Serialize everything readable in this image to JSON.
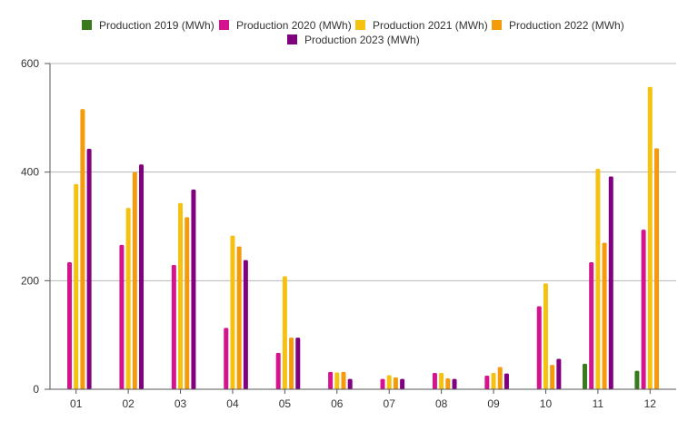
{
  "chart_data": {
    "type": "bar",
    "categories": [
      "01",
      "02",
      "03",
      "04",
      "05",
      "06",
      "07",
      "08",
      "09",
      "10",
      "11",
      "12"
    ],
    "series": [
      {
        "name": "Production 2019 (MWh)",
        "color": "#3a7a1e",
        "values": [
          0,
          0,
          0,
          0,
          0,
          0,
          0,
          0,
          0,
          0,
          47,
          34
        ]
      },
      {
        "name": "Production 2020 (MWh)",
        "color": "#d4148f",
        "values": [
          234,
          266,
          229,
          113,
          67,
          32,
          19,
          30,
          25,
          153,
          234,
          294
        ]
      },
      {
        "name": "Production 2021 (MWh)",
        "color": "#f5c211",
        "values": [
          378,
          334,
          343,
          283,
          208,
          31,
          26,
          30,
          30,
          195,
          406,
          557
        ]
      },
      {
        "name": "Production 2022 (MWh)",
        "color": "#f59a0a",
        "values": [
          516,
          400,
          317,
          263,
          95,
          32,
          22,
          20,
          41,
          45,
          270,
          444
        ]
      },
      {
        "name": "Production 2023 (MWh)",
        "color": "#800080",
        "values": [
          443,
          414,
          368,
          238,
          95,
          19,
          19,
          19,
          29,
          56,
          392,
          0
        ]
      }
    ],
    "yticks": [
      0,
      200,
      400,
      600
    ],
    "ylim": [
      0,
      600
    ],
    "legend_position": "top-center",
    "grid": "horizontal"
  }
}
